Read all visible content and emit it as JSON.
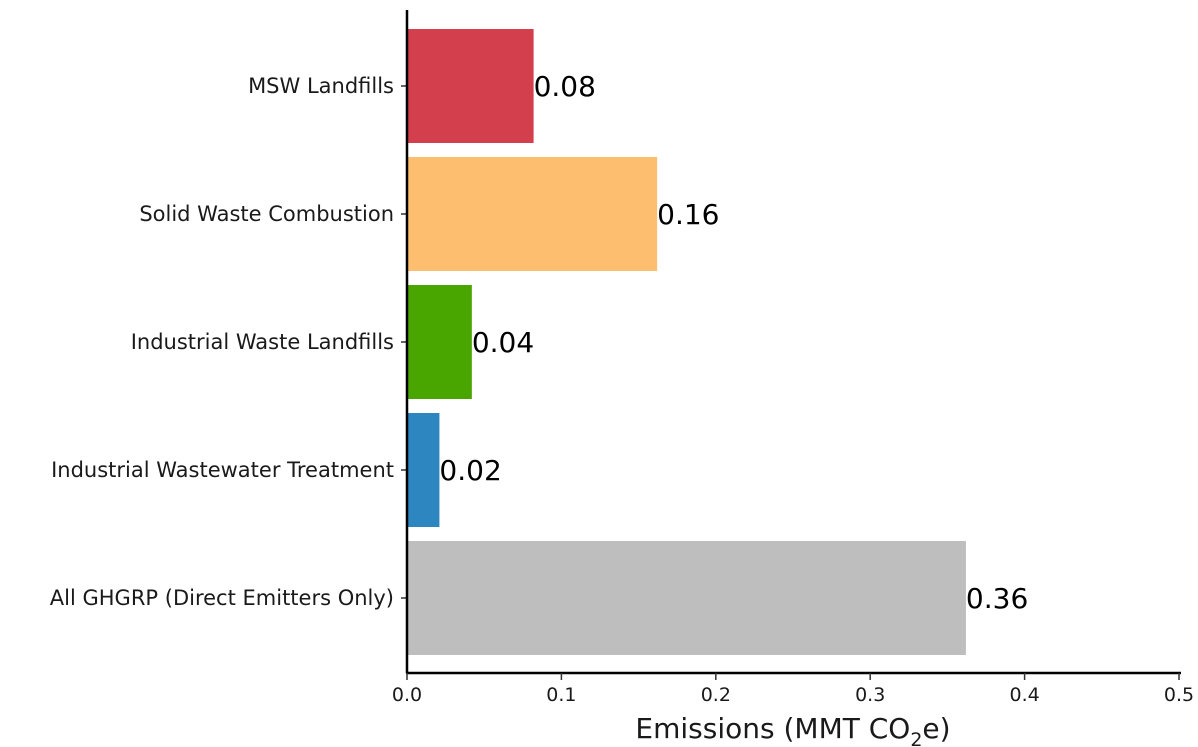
{
  "chart_data": {
    "type": "bar",
    "orientation": "horizontal",
    "categories": [
      "MSW Landfills",
      "Solid Waste Combustion",
      "Industrial Waste Landfills",
      "Industrial Wastewater Treatment",
      "All GHGRP (Direct Emitters Only)"
    ],
    "values": [
      0.082,
      0.162,
      0.042,
      0.021,
      0.362
    ],
    "value_labels": [
      "0.08",
      "0.16",
      "0.04",
      "0.02",
      "0.36"
    ],
    "colors": [
      "#d43f4d",
      "#fdbe6f",
      "#49a600",
      "#2e86c1",
      "#bebebe"
    ],
    "title": "",
    "xlabel": {
      "prefix": "Emissions (MMT CO",
      "subscript": "2",
      "suffix": "e)"
    },
    "ylabel": "",
    "xlim": [
      0,
      0.5
    ],
    "xticks": [
      0.0,
      0.1,
      0.2,
      0.3,
      0.4,
      0.5
    ],
    "xtick_labels": [
      "0.0",
      "0.1",
      "0.2",
      "0.3",
      "0.4",
      "0.5"
    ],
    "grid": false,
    "legend": "none"
  }
}
